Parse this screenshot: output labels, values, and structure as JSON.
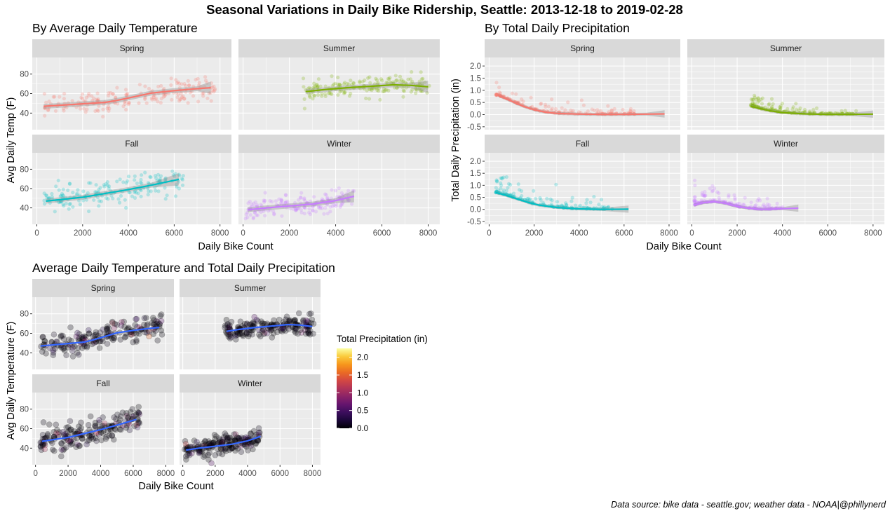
{
  "title": "Seasonal Variations in Daily Bike Ridership, Seattle: 2013-12-18 to 2019-02-28",
  "caption": "Data source: bike data - seattle.gov; weather data - NOAA|@phillynerd",
  "season_colors": {
    "Spring": "#F8766D",
    "Summer": "#7CAE00",
    "Fall": "#00BFC4",
    "Winter": "#C77CFF"
  },
  "chart_data": [
    {
      "type": "scatter",
      "title": "By Average Daily Temperature",
      "xlabel": "Daily Bike Count",
      "ylabel": "Avg Daily Temp (F)",
      "xlim": [
        -200,
        8500
      ],
      "xticks": [
        0,
        2000,
        4000,
        6000,
        8000
      ],
      "ylim": [
        23,
        97
      ],
      "yticks": [
        40,
        60,
        80
      ],
      "color_mode": "season",
      "facets": [
        {
          "name": "Spring",
          "x_range": [
            300,
            7800
          ],
          "trend": [
            [
              300,
              47
            ],
            [
              1000,
              48
            ],
            [
              2000,
              49.5
            ],
            [
              3000,
              51
            ],
            [
              3500,
              53
            ],
            [
              4000,
              55.5
            ],
            [
              4500,
              58
            ],
            [
              5000,
              60.5
            ],
            [
              6000,
              63
            ],
            [
              7000,
              65
            ],
            [
              7600,
              66
            ]
          ]
        },
        {
          "name": "Summer",
          "x_range": [
            2600,
            8100
          ],
          "trend": [
            [
              2700,
              62
            ],
            [
              3500,
              64
            ],
            [
              4500,
              66
            ],
            [
              5500,
              67.5
            ],
            [
              6500,
              69
            ],
            [
              7200,
              68.5
            ],
            [
              8000,
              67
            ]
          ]
        },
        {
          "name": "Fall",
          "x_range": [
            300,
            6400
          ],
          "trend": [
            [
              400,
              47
            ],
            [
              1000,
              48.5
            ],
            [
              2000,
              51
            ],
            [
              3000,
              55
            ],
            [
              4000,
              59
            ],
            [
              5000,
              63.5
            ],
            [
              6200,
              69.5
            ]
          ]
        },
        {
          "name": "Winter",
          "x_range": [
            100,
            4800
          ],
          "trend": [
            [
              200,
              38
            ],
            [
              1000,
              40
            ],
            [
              2000,
              42
            ],
            [
              3000,
              44
            ],
            [
              4000,
              47.5
            ],
            [
              4800,
              52
            ]
          ]
        }
      ]
    },
    {
      "type": "scatter",
      "title": "By Total Daily Precipitation",
      "xlabel": "Daily Bike Count",
      "ylabel": "Total Daily Precipitation (in)",
      "xlim": [
        -200,
        8500
      ],
      "xticks": [
        0,
        2000,
        4000,
        6000,
        8000
      ],
      "ylim": [
        -0.62,
        2.35
      ],
      "yticks": [
        -0.5,
        0.0,
        0.5,
        1.0,
        1.5,
        2.0
      ],
      "color_mode": "season",
      "facets": [
        {
          "name": "Spring",
          "x_range": [
            300,
            7800
          ],
          "trend": [
            [
              400,
              0.8
            ],
            [
              1000,
              0.55
            ],
            [
              1500,
              0.35
            ],
            [
              2000,
              0.2
            ],
            [
              2500,
              0.1
            ],
            [
              3000,
              0.05
            ],
            [
              4000,
              0.02
            ],
            [
              5000,
              0.01
            ],
            [
              6000,
              0.01
            ],
            [
              7000,
              0.02
            ],
            [
              7800,
              0.03
            ]
          ]
        },
        {
          "name": "Summer",
          "x_range": [
            2600,
            8100
          ],
          "trend": [
            [
              2600,
              0.35
            ],
            [
              3000,
              0.25
            ],
            [
              3500,
              0.15
            ],
            [
              4000,
              0.08
            ],
            [
              5000,
              0.03
            ],
            [
              6000,
              0.01
            ],
            [
              7000,
              0.01
            ],
            [
              8000,
              0.02
            ]
          ]
        },
        {
          "name": "Fall",
          "x_range": [
            300,
            6400
          ],
          "trend": [
            [
              300,
              0.7
            ],
            [
              700,
              0.6
            ],
            [
              1200,
              0.45
            ],
            [
              1700,
              0.3
            ],
            [
              2200,
              0.18
            ],
            [
              3000,
              0.08
            ],
            [
              4000,
              0.02
            ],
            [
              5000,
              0.0
            ],
            [
              6200,
              0.01
            ]
          ]
        },
        {
          "name": "Winter",
          "x_range": [
            100,
            4800
          ],
          "trend": [
            [
              100,
              0.18
            ],
            [
              500,
              0.28
            ],
            [
              1000,
              0.32
            ],
            [
              1500,
              0.25
            ],
            [
              2000,
              0.12
            ],
            [
              2500,
              0.05
            ],
            [
              3000,
              0.0
            ],
            [
              3500,
              0.01
            ],
            [
              4000,
              0.03
            ],
            [
              4700,
              0.05
            ]
          ]
        }
      ]
    },
    {
      "type": "scatter",
      "title": "Average Daily Temperature and Total Daily Precipitation",
      "xlabel": "Daily Bike Count",
      "ylabel": "Avg Daily Temperature (F)",
      "xlim": [
        -200,
        8500
      ],
      "xticks": [
        0,
        2000,
        4000,
        6000,
        8000
      ],
      "ylim": [
        23,
        97
      ],
      "yticks": [
        40,
        60,
        80
      ],
      "color_mode": "precip",
      "trend_color": "#3366FF",
      "legend": {
        "title": "Total Precipitation (in)",
        "ticks": [
          0.0,
          0.5,
          1.0,
          1.5,
          2.0
        ],
        "tick_labels": [
          "0.0",
          "0.5",
          "1.0",
          "1.5",
          "2.0"
        ],
        "range": [
          0,
          2.25
        ]
      },
      "facets": [
        {
          "name": "Spring",
          "x_range": [
            300,
            7800
          ],
          "trend": [
            [
              300,
              47
            ],
            [
              1000,
              48
            ],
            [
              2000,
              49.5
            ],
            [
              3000,
              51
            ],
            [
              3500,
              53
            ],
            [
              4000,
              55.5
            ],
            [
              4500,
              58
            ],
            [
              5000,
              60.5
            ],
            [
              6000,
              63
            ],
            [
              7000,
              65
            ],
            [
              7600,
              66
            ]
          ]
        },
        {
          "name": "Summer",
          "x_range": [
            2600,
            8100
          ],
          "trend": [
            [
              2700,
              62
            ],
            [
              3500,
              64
            ],
            [
              4500,
              66
            ],
            [
              5500,
              67.5
            ],
            [
              6500,
              69
            ],
            [
              7200,
              68.5
            ],
            [
              8000,
              67
            ]
          ]
        },
        {
          "name": "Fall",
          "x_range": [
            300,
            6400
          ],
          "trend": [
            [
              400,
              47
            ],
            [
              1000,
              48.5
            ],
            [
              2000,
              51
            ],
            [
              3000,
              55
            ],
            [
              4000,
              59
            ],
            [
              5000,
              63.5
            ],
            [
              6200,
              69.5
            ]
          ]
        },
        {
          "name": "Winter",
          "x_range": [
            100,
            4800
          ],
          "trend": [
            [
              200,
              38
            ],
            [
              1000,
              40
            ],
            [
              2000,
              42
            ],
            [
              3000,
              44
            ],
            [
              4000,
              47.5
            ],
            [
              4800,
              52
            ]
          ]
        }
      ]
    }
  ]
}
